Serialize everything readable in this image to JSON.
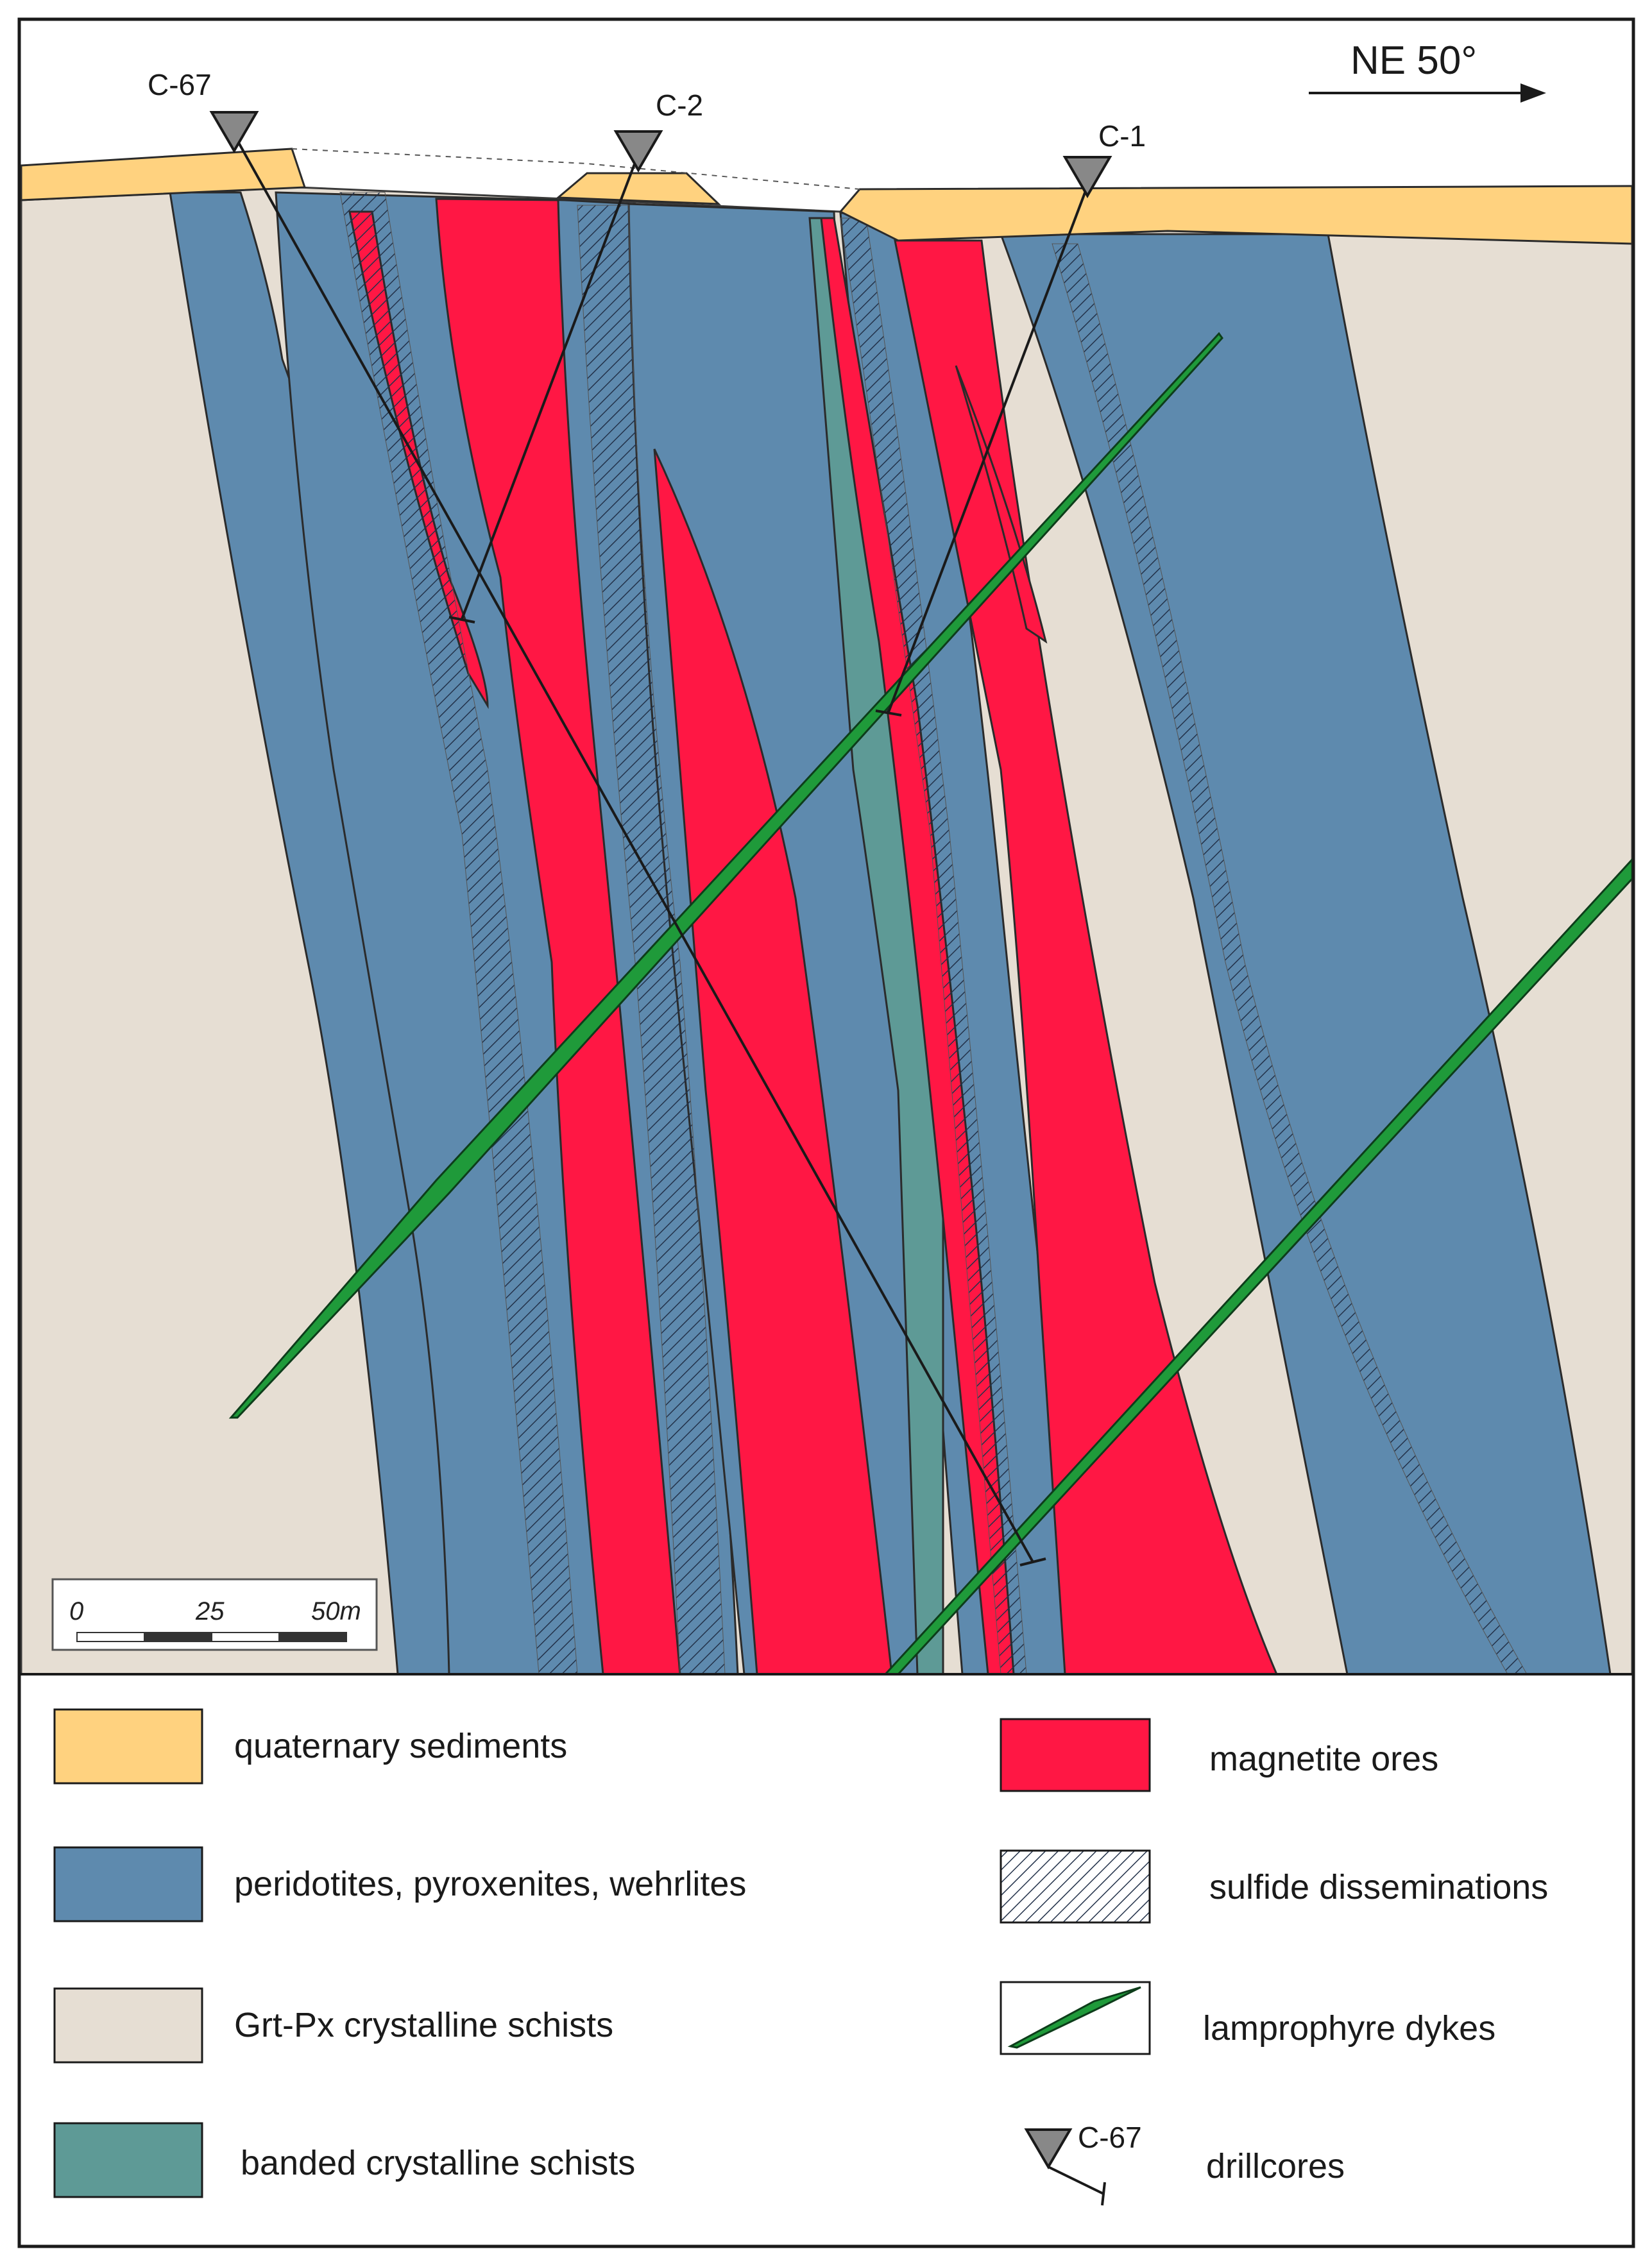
{
  "section": {
    "direction_label": "NE 50°",
    "scale_labels": [
      "0",
      "25",
      "50m"
    ],
    "drillcores": [
      {
        "label": "C-67"
      },
      {
        "label": "C-2"
      },
      {
        "label": "C-1"
      }
    ]
  },
  "colors": {
    "quaternary_sediments": "#FFD27F",
    "peridotites": "#5E8AAE",
    "schists": "#E6DED3",
    "banded_schists": "#5E9A96",
    "magnetite": "#FF1744",
    "lamprophyre": "#1F9A3A",
    "sulfide_hatch": "#2A3A52"
  },
  "legend": {
    "items": [
      {
        "label": "quaternary sediments",
        "swatch": "quaternary_sediments"
      },
      {
        "label": "peridotites, pyroxenites, wehrlites",
        "swatch": "peridotites"
      },
      {
        "label": "Grt-Px crystalline schists",
        "swatch": "schists"
      },
      {
        "label": "banded crystalline schists",
        "swatch": "banded_schists"
      },
      {
        "label": "magnetite ores",
        "swatch": "magnetite"
      },
      {
        "label": "sulfide disseminations",
        "swatch": "sulfide"
      },
      {
        "label": "lamprophyre dykes",
        "swatch": "lamprophyre"
      },
      {
        "label": "drillcores",
        "swatch": "drillcore",
        "sample_label": "C-67"
      }
    ]
  }
}
